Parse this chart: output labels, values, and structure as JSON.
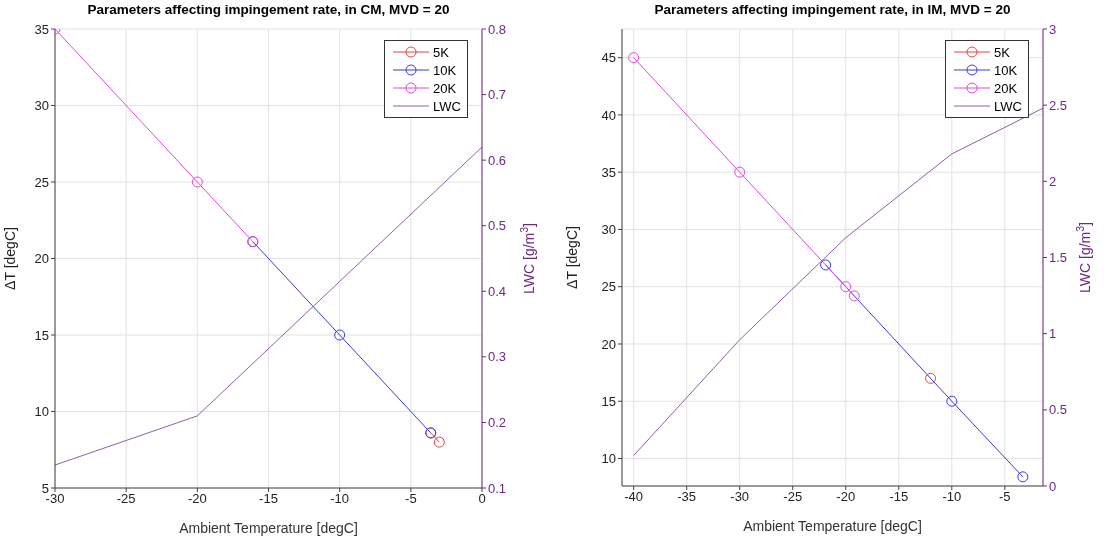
{
  "chart_data": [
    {
      "type": "line",
      "title": "Parameters affecting impingement rate, in CM, MVD = 20",
      "xlabel": "Ambient Temperature [degC]",
      "ylabel": "ΔT [degC]",
      "y2label": "LWC [g/m$^{3}$]",
      "xlim": [
        -30,
        0
      ],
      "xticks": [
        -30,
        -25,
        -20,
        -15,
        -10,
        -5,
        0
      ],
      "ylim": [
        5,
        35
      ],
      "yticks": [
        5,
        10,
        15,
        20,
        25,
        30,
        35
      ],
      "y2lim": [
        0.1,
        0.8
      ],
      "y2ticks": [
        0.1,
        0.2,
        0.3,
        0.4,
        0.5,
        0.6,
        0.7,
        0.8
      ],
      "grid": true,
      "legend": "top right",
      "marker": "circle",
      "series": [
        {
          "name": "5K",
          "color": "#e8453c",
          "x": [
            -3.6,
            -3
          ],
          "values": [
            8.6,
            8
          ]
        },
        {
          "name": "10K",
          "color": "#3b3bdf",
          "x": [
            -16.1,
            -10,
            -3.6
          ],
          "values": [
            21.1,
            15,
            8.6
          ]
        },
        {
          "name": "20K",
          "color": "#e646e6",
          "x": [
            -30,
            -20,
            -16.1
          ],
          "values": [
            35,
            25,
            21.1
          ]
        },
        {
          "name": "LWC",
          "color": "#9060a2",
          "axis": "y2",
          "marker": "none",
          "x": [
            -30,
            -20,
            -10,
            0
          ],
          "values": [
            0.135,
            0.21,
            0.415,
            0.62
          ]
        }
      ]
    },
    {
      "type": "line",
      "title": "Parameters affecting impingement rate, in IM, MVD = 20",
      "xlabel": "Ambient Temperature [degC]",
      "ylabel": "ΔT [degC]",
      "y2label": "LWC [g/m$^{3}$]",
      "xlim": [
        -41.1,
        -1.4
      ],
      "xticks": [
        -40,
        -35,
        -30,
        -25,
        -20,
        -15,
        -10,
        -5
      ],
      "ylim": [
        7.6,
        47.5
      ],
      "yticks": [
        10,
        15,
        20,
        25,
        30,
        35,
        40,
        45
      ],
      "y2lim": [
        0,
        3
      ],
      "y2ticks": [
        0,
        0.5,
        1,
        1.5,
        2,
        2.5,
        3
      ],
      "grid": true,
      "legend": "top right",
      "marker": "circle",
      "series": [
        {
          "name": "5K",
          "color": "#e8453c",
          "x": [
            -12
          ],
          "values": [
            17
          ]
        },
        {
          "name": "10K",
          "color": "#3b3bdf",
          "x": [
            -21.9,
            -10,
            -3.3
          ],
          "values": [
            26.9,
            15,
            8.4
          ]
        },
        {
          "name": "20K",
          "color": "#e646e6",
          "x": [
            -40,
            -30,
            -20,
            -19.2
          ],
          "values": [
            45,
            35,
            25,
            24.2
          ]
        },
        {
          "name": "LWC",
          "color": "#9060a2",
          "axis": "y2",
          "marker": "none",
          "x": [
            -40,
            -30,
            -20,
            -10,
            -1.4
          ],
          "values": [
            0.2,
            0.96,
            1.63,
            2.18,
            2.48
          ]
        }
      ]
    }
  ]
}
